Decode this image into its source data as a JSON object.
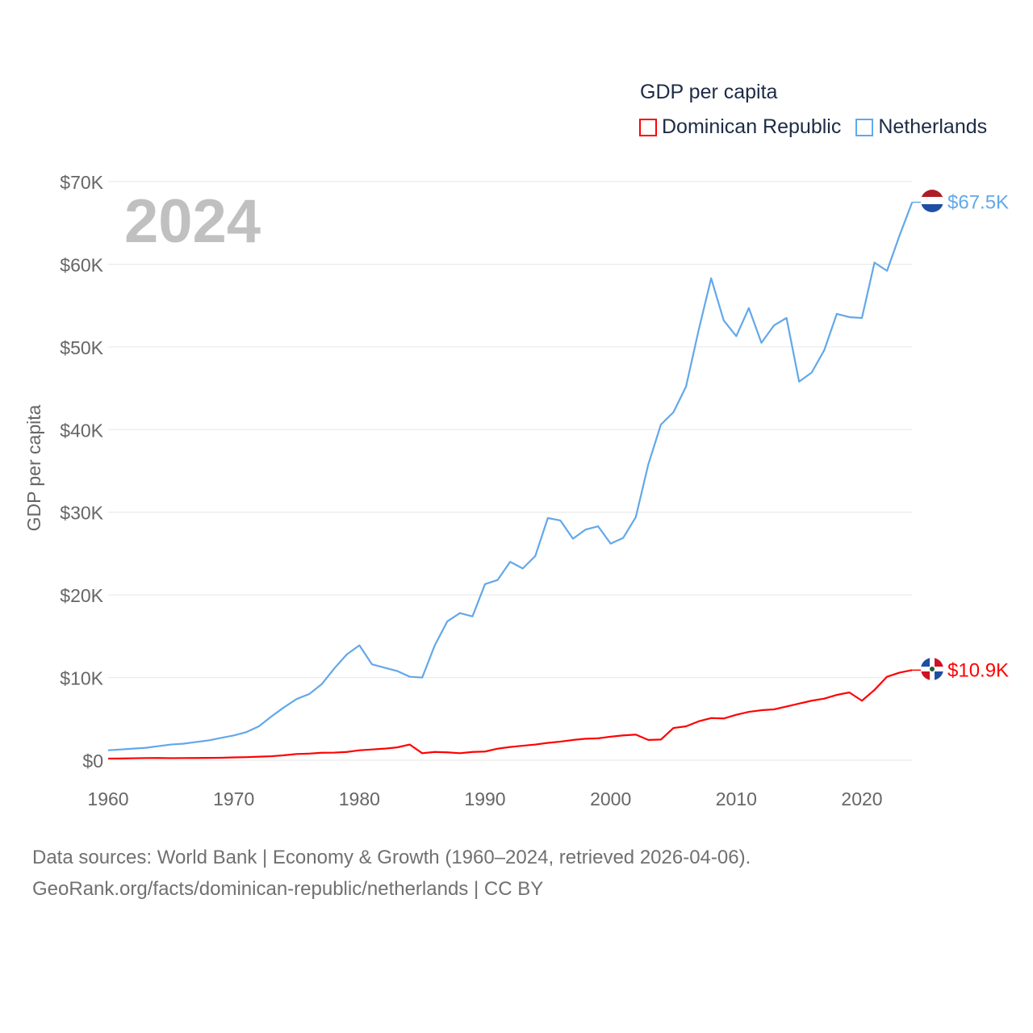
{
  "chart_data": {
    "type": "line",
    "title": "GDP per capita",
    "year_label": "2024",
    "ylabel": "GDP per capita",
    "xlabel": "",
    "xlim": [
      1960,
      2024
    ],
    "ylim": [
      0,
      70000
    ],
    "x_ticks": [
      1960,
      1970,
      1980,
      1990,
      2000,
      2010,
      2020
    ],
    "y_ticks": [
      0,
      10000,
      20000,
      30000,
      40000,
      50000,
      60000,
      70000
    ],
    "y_tick_labels": [
      "$0",
      "$10K",
      "$20K",
      "$30K",
      "$40K",
      "$50K",
      "$60K",
      "$70K"
    ],
    "x_tick_labels": [
      "1960",
      "1970",
      "1980",
      "1990",
      "2000",
      "2010",
      "2020"
    ],
    "grid": true,
    "legend_position": "top-right",
    "x": [
      1960,
      1961,
      1962,
      1963,
      1964,
      1965,
      1966,
      1967,
      1968,
      1969,
      1970,
      1971,
      1972,
      1973,
      1974,
      1975,
      1976,
      1977,
      1978,
      1979,
      1980,
      1981,
      1982,
      1983,
      1984,
      1985,
      1986,
      1987,
      1988,
      1989,
      1990,
      1991,
      1992,
      1993,
      1994,
      1995,
      1996,
      1997,
      1998,
      1999,
      2000,
      2001,
      2002,
      2003,
      2004,
      2005,
      2006,
      2007,
      2008,
      2009,
      2010,
      2011,
      2012,
      2013,
      2014,
      2015,
      2016,
      2017,
      2018,
      2019,
      2020,
      2021,
      2022,
      2023,
      2024
    ],
    "series": [
      {
        "name": "Dominican Republic",
        "color": "#ff0000",
        "end_label": "$10.9K",
        "values": [
          200,
          210,
          240,
          260,
          270,
          250,
          260,
          270,
          280,
          300,
          340,
          370,
          430,
          480,
          600,
          750,
          800,
          900,
          920,
          1000,
          1200,
          1300,
          1400,
          1550,
          1900,
          850,
          1000,
          950,
          850,
          1000,
          1050,
          1400,
          1600,
          1750,
          1900,
          2100,
          2250,
          2450,
          2600,
          2650,
          2850,
          3000,
          3100,
          2450,
          2500,
          3900,
          4100,
          4700,
          5100,
          5050,
          5500,
          5850,
          6050,
          6150,
          6500,
          6850,
          7200,
          7450,
          7900,
          8200,
          7200,
          8500,
          10100,
          10600,
          10900
        ]
      },
      {
        "name": "Netherlands",
        "color": "#62a8ea",
        "end_label": "$67.5K",
        "values": [
          1200,
          1300,
          1400,
          1500,
          1700,
          1900,
          2000,
          2200,
          2400,
          2700,
          3000,
          3400,
          4100,
          5300,
          6400,
          7400,
          8000,
          9200,
          11100,
          12800,
          13900,
          11600,
          11200,
          10800,
          10100,
          10000,
          13900,
          16800,
          17800,
          17400,
          21300,
          21800,
          24000,
          23200,
          24700,
          29300,
          29000,
          26800,
          27900,
          28300,
          26200,
          26900,
          29400,
          35800,
          40600,
          42100,
          45200,
          52000,
          58300,
          53200,
          51300,
          54700,
          50500,
          52600,
          53500,
          45800,
          46900,
          49600,
          54000,
          53600,
          53500,
          60200,
          59200,
          63500,
          67500
        ]
      }
    ]
  },
  "footer": {
    "line1": "Data sources: World Bank | Economy & Growth (1960–2024, retrieved 2026-04-06).",
    "line2": "GeoRank.org/facts/dominican-republic/netherlands | CC BY"
  }
}
